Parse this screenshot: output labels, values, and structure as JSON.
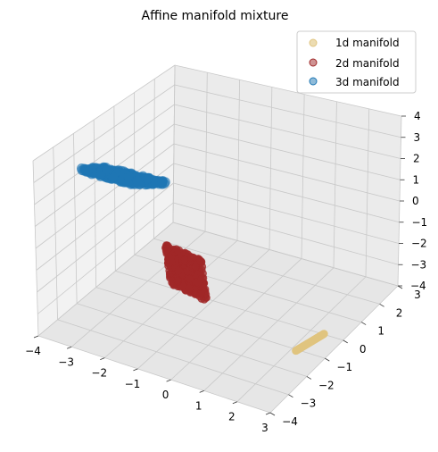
{
  "chart_data": {
    "type": "scatter",
    "projection": "3d",
    "title": "Affine manifold mixture",
    "xlabel": "",
    "ylabel": "",
    "zlabel": "",
    "xlim": [
      -4,
      3
    ],
    "ylim": [
      -4,
      3
    ],
    "zlim": [
      -4,
      4
    ],
    "x_ticks": [
      "−4",
      "−3",
      "−2",
      "−1",
      "0",
      "1",
      "2",
      "3"
    ],
    "y_ticks": [
      "−4",
      "−3",
      "−2",
      "−1",
      "0",
      "1",
      "2",
      "3"
    ],
    "z_ticks": [
      "−4",
      "−3",
      "−2",
      "−1",
      "0",
      "1",
      "2",
      "3",
      "4"
    ],
    "grid": true,
    "legend_placement": "top-right",
    "series": [
      {
        "name": "1d manifold",
        "color": "#e0c47f",
        "shape": "line",
        "endpoints": [
          [
            2.0,
            -0.2,
            -4.3
          ],
          [
            2.3,
            -1.2,
            -4.2
          ]
        ]
      },
      {
        "name": "2d manifold",
        "color": "#a02828",
        "shape": "plane",
        "center": [
          -0.5,
          1.6,
          0.2
        ],
        "corners": [
          [
            -0.3,
            0.8,
            -0.2
          ],
          [
            -0.8,
            1.9,
            1.2
          ],
          [
            -0.2,
            2.6,
            0.2
          ],
          [
            0.3,
            1.6,
            -1.2
          ]
        ]
      },
      {
        "name": "3d manifold",
        "color": "#1f77b4",
        "shape": "volume",
        "center": [
          -2.6,
          1.0,
          2.7
        ],
        "corners": [
          [
            -3.6,
            1.4,
            2.8
          ],
          [
            -2.6,
            1.9,
            3.8
          ],
          [
            -1.4,
            0.4,
            2.6
          ],
          [
            -2.7,
            0.3,
            1.8
          ]
        ]
      }
    ]
  }
}
